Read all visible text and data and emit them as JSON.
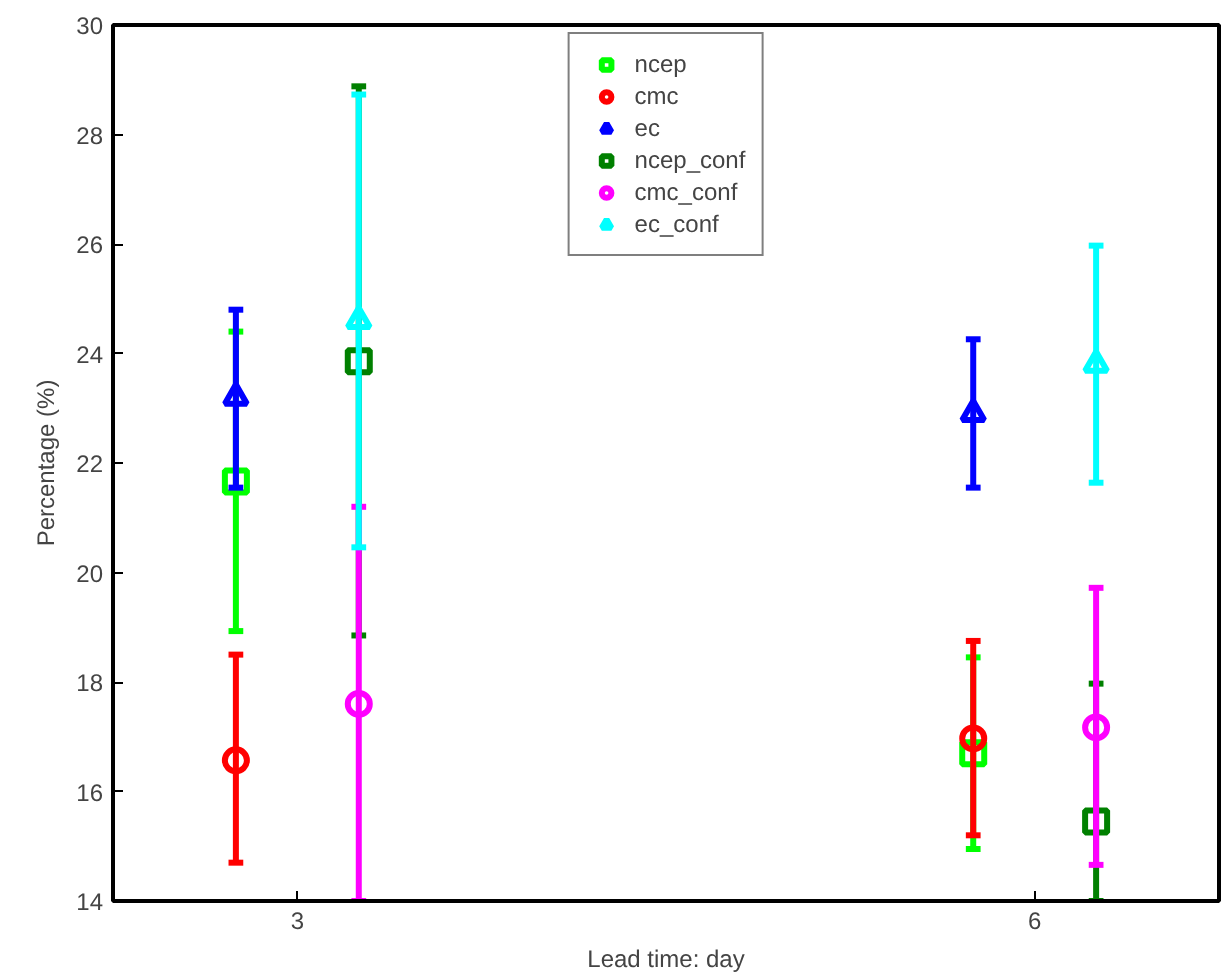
{
  "chart_data": {
    "type": "scatter",
    "xlabel": "Lead time: day",
    "ylabel": "Percentage (%)",
    "xlim": [
      2.25,
      6.75
    ],
    "xticks": [
      3,
      6
    ],
    "ylim": [
      14,
      30
    ],
    "yticks": [
      14,
      16,
      18,
      20,
      22,
      24,
      26,
      28,
      30
    ],
    "grid": false,
    "legend": "top",
    "series": [
      {
        "name": "ncep",
        "color": "#00ff00",
        "marker": "square",
        "x": [
          2.75,
          5.75
        ],
        "values": [
          21.66,
          16.7
        ],
        "errors": [
          [
            18.93,
            24.4
          ],
          [
            14.95,
            18.45
          ]
        ]
      },
      {
        "name": "cmc",
        "color": "#ff0000",
        "marker": "circle",
        "x": [
          2.75,
          5.75
        ],
        "values": [
          16.57,
          16.97
        ],
        "errors": [
          [
            14.7,
            18.5
          ],
          [
            15.2,
            18.75
          ]
        ]
      },
      {
        "name": "ec",
        "color": "#0000ff",
        "marker": "triangle",
        "x": [
          2.75,
          5.75
        ],
        "values": [
          23.2,
          22.9
        ],
        "errors": [
          [
            21.55,
            24.8
          ],
          [
            21.55,
            24.26
          ]
        ]
      },
      {
        "name": "ncep_conf",
        "color": "#008000",
        "marker": "square",
        "x": [
          3.25,
          6.25
        ],
        "values": [
          23.86,
          15.45
        ],
        "errors": [
          [
            18.85,
            28.88
          ],
          [
            14,
            17.97
          ]
        ]
      },
      {
        "name": "cmc_conf",
        "color": "#ff00ff",
        "marker": "circle",
        "x": [
          3.25,
          6.25
        ],
        "values": [
          17.6,
          17.17
        ],
        "errors": [
          [
            14,
            21.2
          ],
          [
            14.66,
            19.72
          ]
        ]
      },
      {
        "name": "ec_conf",
        "color": "#00ffff",
        "marker": "triangle",
        "x": [
          3.25,
          6.25
        ],
        "values": [
          24.6,
          23.8
        ],
        "errors": [
          [
            20.46,
            28.73
          ],
          [
            21.64,
            25.97
          ]
        ]
      }
    ]
  }
}
